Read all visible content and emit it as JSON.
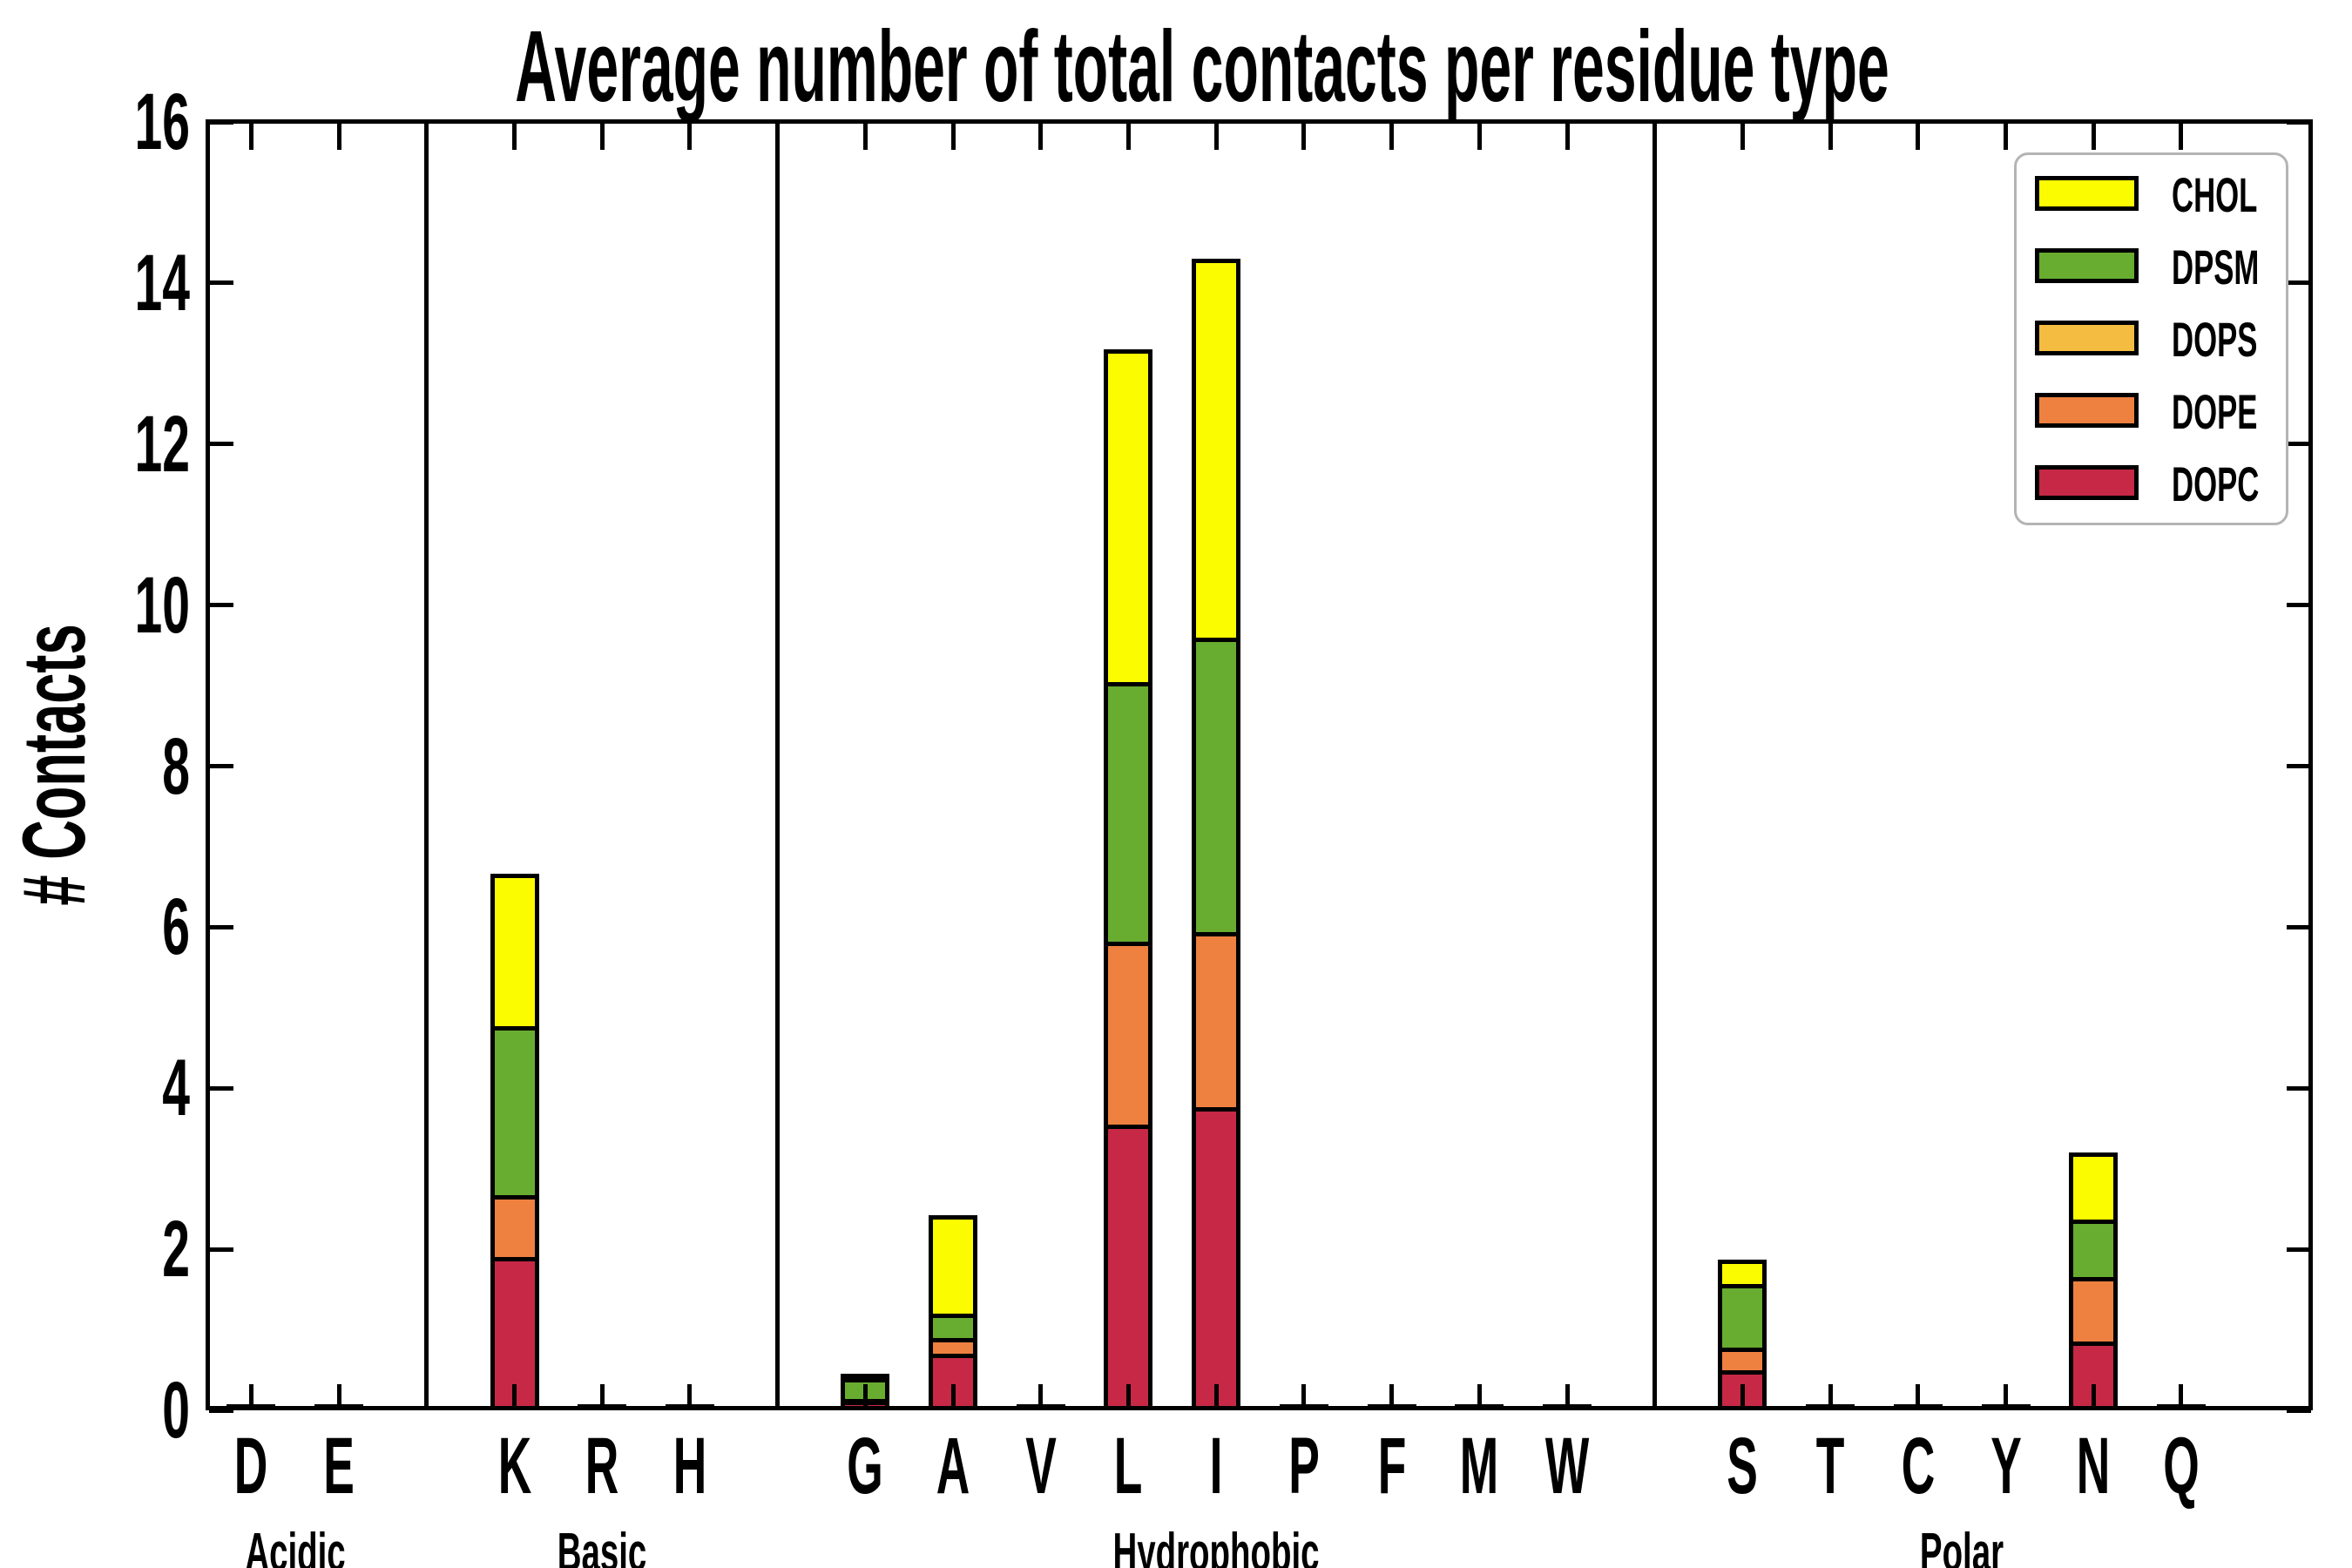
{
  "title": "Average number of total contacts per residue type",
  "y_axis": {
    "label": "# Contacts",
    "tick_values": [
      0,
      2,
      4,
      6,
      8,
      10,
      12,
      14,
      16
    ]
  },
  "legend": {
    "items": [
      {
        "label": "CHOL",
        "color": "#FCFC00"
      },
      {
        "label": "DPSM",
        "color": "#68AC30"
      },
      {
        "label": "DOPS",
        "color": "#F5BC42"
      },
      {
        "label": "DOPE",
        "color": "#EE8040"
      },
      {
        "label": "DOPC",
        "color": "#C62846"
      }
    ]
  },
  "chart_data": {
    "type": "bar",
    "stacked": true,
    "title": "Average number of total contacts per residue type",
    "xlabel": "",
    "ylabel": "# Contacts",
    "ylim": [
      0,
      16
    ],
    "y_major_tick_step": 2,
    "grid": false,
    "legend_position": "upper right",
    "groups": [
      {
        "name": "Acidic",
        "residues": [
          "D",
          "E"
        ]
      },
      {
        "name": "Basic",
        "residues": [
          "K",
          "R",
          "H"
        ]
      },
      {
        "name": "Hydrophobic",
        "residues": [
          "G",
          "A",
          "V",
          "L",
          "I",
          "P",
          "F",
          "M",
          "W"
        ]
      },
      {
        "name": "Polar",
        "residues": [
          "S",
          "T",
          "C",
          "Y",
          "N",
          "Q"
        ]
      }
    ],
    "categories": [
      "D",
      "E",
      "K",
      "R",
      "H",
      "G",
      "A",
      "V",
      "L",
      "I",
      "P",
      "F",
      "M",
      "W",
      "S",
      "T",
      "C",
      "Y",
      "N",
      "Q"
    ],
    "series": [
      {
        "name": "DOPC",
        "color": "#C62846",
        "values": [
          0.02,
          0.02,
          1.9,
          0.02,
          0.02,
          0.12,
          0.7,
          0.02,
          3.55,
          3.77,
          0.02,
          0.02,
          0.02,
          0.02,
          0.5,
          0.02,
          0.02,
          0.02,
          0.85,
          0.02
        ]
      },
      {
        "name": "DOPE",
        "color": "#EE8040",
        "values": [
          0,
          0,
          0.77,
          0,
          0,
          0.02,
          0.2,
          0,
          2.27,
          2.17,
          0,
          0,
          0,
          0,
          0.28,
          0,
          0,
          0,
          0.81,
          0
        ]
      },
      {
        "name": "DOPS",
        "color": "#F5BC42",
        "values": [
          0,
          0,
          0,
          0,
          0,
          0,
          0,
          0,
          0,
          0,
          0,
          0,
          0,
          0,
          0,
          0,
          0,
          0,
          0,
          0
        ]
      },
      {
        "name": "DPSM",
        "color": "#68AC30",
        "values": [
          0,
          0,
          2.1,
          0,
          0,
          0.26,
          0.3,
          0,
          3.22,
          3.66,
          0,
          0,
          0,
          0,
          0.79,
          0,
          0,
          0,
          0.71,
          0
        ]
      },
      {
        "name": "CHOL",
        "color": "#FCFC00",
        "values": [
          0,
          0,
          1.9,
          0,
          0,
          0.05,
          1.22,
          0,
          4.14,
          4.7,
          0,
          0,
          0,
          0,
          0.3,
          0,
          0,
          0,
          0.83,
          0
        ]
      }
    ],
    "bar_totals": {
      "K": 6.67,
      "G": 0.45,
      "A": 2.42,
      "L": 13.18,
      "I": 14.3,
      "S": 1.87,
      "N": 3.2
    }
  }
}
